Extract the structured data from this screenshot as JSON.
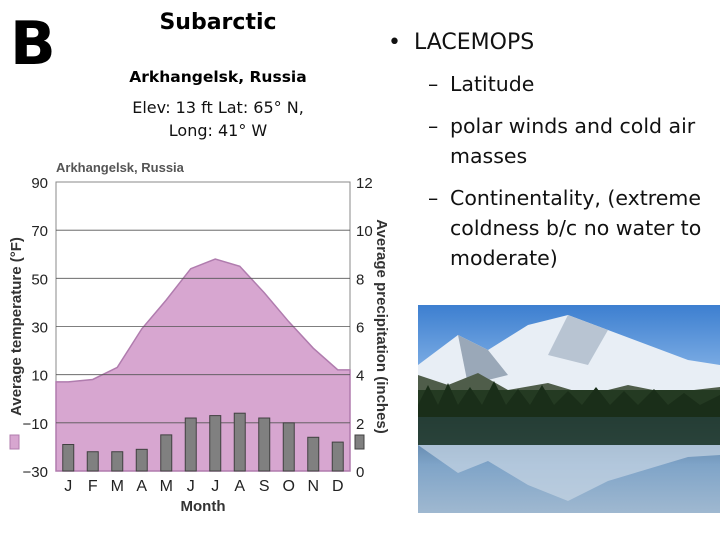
{
  "slide": {
    "letter": "B",
    "title": "Subarctic",
    "location": {
      "name": "Arkhangelsk, Russia",
      "details_line1": "Elev: 13 ft  Lat: 65° N,",
      "details_line2": "Long: 41° W"
    },
    "bullet": {
      "heading": "LACEMOPS",
      "items": [
        "Latitude",
        "polar winds and cold air masses",
        "Continentality, (extreme coldness b/c no water to moderate)"
      ]
    },
    "photo": {
      "icon": "mountain-lake-photo"
    }
  },
  "chart_data": {
    "type": "bar",
    "title": "Arkhangelsk, Russia",
    "categories": [
      "J",
      "F",
      "M",
      "A",
      "M",
      "J",
      "J",
      "A",
      "S",
      "O",
      "N",
      "D"
    ],
    "xlabel": "Month",
    "ylabel": "Average temperature (°F)",
    "y2label": "Average precipitation (inches)",
    "ylim": [
      -30,
      90
    ],
    "y2lim": [
      0,
      12
    ],
    "yticks": [
      90,
      70,
      50,
      30,
      10,
      -10,
      -30
    ],
    "y2ticks": [
      12,
      10,
      8,
      6,
      4,
      2,
      0
    ],
    "series": [
      {
        "kind": "area",
        "axis": "left",
        "values": [
          7,
          8,
          13,
          29,
          41,
          54,
          58,
          55,
          44,
          32,
          21,
          12
        ]
      },
      {
        "kind": "bar",
        "axis": "right",
        "values": [
          1.1,
          0.8,
          0.8,
          0.9,
          1.5,
          2.2,
          2.3,
          2.4,
          2.2,
          2.0,
          1.4,
          1.2
        ]
      }
    ],
    "legend": "bottom-left",
    "colors": {
      "area_fill": "#d7a6d0",
      "area_stroke": "#b07cae",
      "bar_fill": "#808080",
      "bar_stroke": "#404040"
    }
  }
}
